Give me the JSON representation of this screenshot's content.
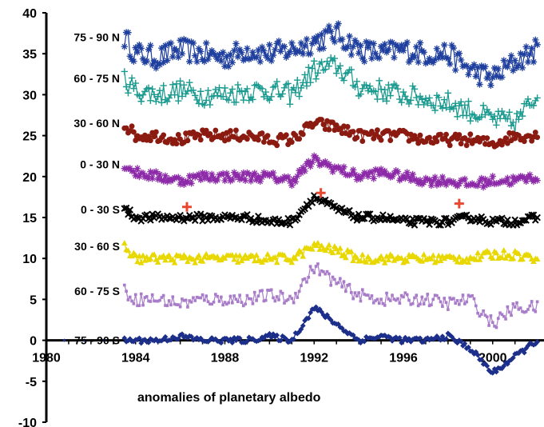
{
  "chart_data": {
    "type": "line",
    "title": "",
    "annotation": "anomalies of planetary albedo",
    "xlabel": "",
    "ylabel": "",
    "xlim": [
      1980,
      2002.3
    ],
    "ylim": [
      -10,
      40
    ],
    "x_ticks": [
      "1980",
      "1984",
      "1988",
      "1992",
      "1996",
      "2000"
    ],
    "y_ticks": [
      "40",
      "35",
      "30",
      "25",
      "20",
      "15",
      "10",
      "5",
      "0",
      "-5",
      "-10"
    ],
    "grid": false,
    "series": [
      {
        "name": "75 - 90 N",
        "color": "#1f3f9e",
        "marker": "star",
        "start": 1983.5,
        "x": [
          1983.5,
          1984,
          1985,
          1986,
          1987,
          1988,
          1989,
          1990,
          1991,
          1992,
          1993,
          1994,
          1995,
          1996,
          1997,
          1998,
          1999,
          2000,
          2001,
          2002
        ],
        "values": [
          37,
          35,
          34.5,
          35.5,
          35,
          34.5,
          35.5,
          35,
          35.5,
          36.5,
          37.5,
          35.5,
          35,
          35.5,
          35,
          35,
          33,
          32,
          34,
          35.5
        ]
      },
      {
        "name": "60 - 75 N",
        "color": "#1a9a8f",
        "marker": "plus",
        "start": 1983.5,
        "x": [
          1983.5,
          1984,
          1985,
          1986,
          1987,
          1988,
          1989,
          1990,
          1991,
          1992,
          1993,
          1994,
          1995,
          1996,
          1997,
          1998,
          1999,
          2000,
          2001,
          2002
        ],
        "values": [
          32,
          30.5,
          30,
          30.5,
          30,
          30,
          30.5,
          30.5,
          30,
          33,
          33.5,
          31,
          30.5,
          30,
          29.5,
          29,
          28,
          27,
          26.5,
          30
        ]
      },
      {
        "name": "30 - 60 N",
        "color": "#8b1a10",
        "marker": "circle",
        "start": 1983.5,
        "x": [
          1983.5,
          1984,
          1985,
          1986,
          1987,
          1988,
          1989,
          1990,
          1991,
          1992,
          1993,
          1994,
          1995,
          1996,
          1997,
          1998,
          1999,
          2000,
          2001,
          2002
        ],
        "values": [
          26.5,
          25,
          25,
          24.5,
          25,
          25,
          25,
          24.5,
          24.5,
          26.5,
          26,
          25,
          25,
          25,
          24.5,
          24.5,
          24.5,
          24,
          25,
          25
        ]
      },
      {
        "name": "0 - 30 N",
        "color": "#8c2aa8",
        "marker": "star",
        "start": 1983.5,
        "x": [
          1983.5,
          1984,
          1985,
          1986,
          1987,
          1988,
          1989,
          1990,
          1991,
          1992,
          1993,
          1994,
          1995,
          1996,
          1997,
          1998,
          1999,
          2000,
          2001,
          2002
        ],
        "values": [
          21.5,
          20.5,
          20,
          19.5,
          20,
          20,
          20,
          20,
          19.5,
          22,
          21,
          20,
          20.5,
          20,
          19.5,
          19.5,
          19,
          19.5,
          19.5,
          20
        ]
      },
      {
        "name": "0 - 30 S",
        "color": "#000000",
        "marker": "cross",
        "start": 1983.5,
        "x": [
          1983.5,
          1984,
          1985,
          1986,
          1987,
          1988,
          1989,
          1990,
          1991,
          1992,
          1993,
          1994,
          1995,
          1996,
          1997,
          1998,
          1999,
          2000,
          2001,
          2002
        ],
        "values": [
          16,
          15,
          15,
          15,
          15,
          15,
          15,
          14.5,
          14.5,
          17.5,
          16,
          15,
          15,
          14.5,
          14.5,
          14.5,
          15,
          14.5,
          14.5,
          15
        ]
      },
      {
        "name": "30 - 60 S",
        "color": "#e8d800",
        "marker": "triangle",
        "start": 1983.5,
        "x": [
          1983.5,
          1984,
          1985,
          1986,
          1987,
          1988,
          1989,
          1990,
          1991,
          1992,
          1993,
          1994,
          1995,
          1996,
          1997,
          1998,
          1999,
          2000,
          2001,
          2002
        ],
        "values": [
          11.5,
          10,
          10,
          10,
          10,
          10,
          10,
          10,
          10,
          11.5,
          11,
          10,
          10,
          10,
          10,
          10,
          10,
          10.5,
          10.5,
          10
        ]
      },
      {
        "name": "60 - 75 S",
        "color": "#a87cc8",
        "marker": "square",
        "start": 1983.5,
        "x": [
          1983.5,
          1984,
          1985,
          1986,
          1987,
          1988,
          1989,
          1990,
          1991,
          1992,
          1993,
          1994,
          1995,
          1996,
          1997,
          1998,
          1999,
          2000,
          2001,
          2002
        ],
        "values": [
          6,
          5,
          5,
          4.5,
          5,
          5,
          5,
          5.5,
          5,
          9,
          7,
          5.5,
          5,
          5,
          5,
          4.5,
          5,
          2,
          4,
          4
        ]
      },
      {
        "name": "75 - 90 S",
        "color": "#1c2f8a",
        "marker": "diamond",
        "start": 1983.5,
        "x": [
          1983.5,
          1984,
          1985,
          1986,
          1987,
          1988,
          1989,
          1990,
          1991,
          1992,
          1993,
          1994,
          1995,
          1996,
          1997,
          1998,
          1999,
          2000,
          2001,
          2002
        ],
        "values": [
          0,
          0,
          0,
          0.5,
          0,
          0,
          0,
          0.5,
          0,
          4,
          2,
          0,
          0.5,
          0,
          0,
          0.5,
          -1,
          -4,
          -2,
          0
        ]
      }
    ],
    "event_markers": {
      "color": "#e84830",
      "points": [
        {
          "x": 1986.3,
          "y": 16.3
        },
        {
          "x": 1992.3,
          "y": 18
        },
        {
          "x": 1998.5,
          "y": 16.7
        }
      ]
    }
  }
}
